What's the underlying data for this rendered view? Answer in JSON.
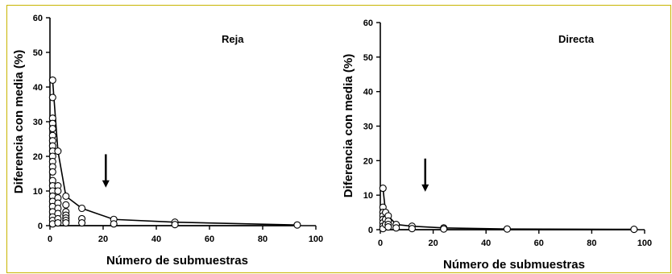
{
  "chart_data": [
    {
      "type": "scatter",
      "title": "Reja",
      "xlabel": "Número de submuestras",
      "ylabel": "Diferencia con media (%)",
      "xlim": [
        0,
        100
      ],
      "ylim": [
        0,
        60
      ],
      "xticks": [
        0,
        20,
        40,
        60,
        80,
        100
      ],
      "yticks": [
        0,
        10,
        20,
        30,
        40,
        50,
        60
      ],
      "arrow_at_x": 21,
      "envelope": [
        [
          1,
          42
        ],
        [
          3,
          21.5
        ],
        [
          6,
          8.5
        ],
        [
          12,
          5
        ],
        [
          24,
          1.8
        ],
        [
          47,
          1
        ],
        [
          93,
          0.2
        ]
      ],
      "baseline": [
        [
          1,
          0
        ],
        [
          93,
          0
        ]
      ],
      "points": [
        [
          1,
          42
        ],
        [
          1,
          37
        ],
        [
          1,
          31
        ],
        [
          1,
          29.5
        ],
        [
          1,
          28
        ],
        [
          1,
          26
        ],
        [
          1,
          24.5
        ],
        [
          1,
          23
        ],
        [
          1,
          21.5
        ],
        [
          1,
          20
        ],
        [
          1,
          18.5
        ],
        [
          1,
          17
        ],
        [
          1,
          15.5
        ],
        [
          1,
          13
        ],
        [
          1,
          11.5
        ],
        [
          1,
          10
        ],
        [
          1,
          8.5
        ],
        [
          1,
          7
        ],
        [
          1,
          5.5
        ],
        [
          1,
          4
        ],
        [
          1,
          2.5
        ],
        [
          1,
          1.5
        ],
        [
          1,
          0.5
        ],
        [
          3,
          21.5
        ],
        [
          3,
          11.5
        ],
        [
          3,
          10
        ],
        [
          3,
          8
        ],
        [
          3,
          6.5
        ],
        [
          3,
          5
        ],
        [
          3,
          3.5
        ],
        [
          3,
          2
        ],
        [
          3,
          0.8
        ],
        [
          6,
          8.5
        ],
        [
          6,
          6
        ],
        [
          6,
          4
        ],
        [
          6,
          3
        ],
        [
          6,
          2.2
        ],
        [
          6,
          1.5
        ],
        [
          6,
          0.8
        ],
        [
          12,
          5
        ],
        [
          12,
          2
        ],
        [
          12,
          0.8
        ],
        [
          24,
          1.8
        ],
        [
          24,
          0.5
        ],
        [
          47,
          1
        ],
        [
          47,
          0.3
        ],
        [
          93,
          0.2
        ]
      ]
    },
    {
      "type": "scatter",
      "title": "Directa",
      "xlabel": "Número de submuestras",
      "ylabel": "Diferencia con media (%)",
      "xlim": [
        0,
        100
      ],
      "ylim": [
        0,
        60
      ],
      "xticks": [
        0,
        20,
        40,
        60,
        80,
        100
      ],
      "yticks": [
        0,
        10,
        20,
        30,
        40,
        50,
        60
      ],
      "arrow_at_x": 17,
      "envelope": [
        [
          1,
          12
        ],
        [
          2,
          5
        ],
        [
          3,
          4
        ],
        [
          6,
          1.5
        ],
        [
          12,
          1
        ],
        [
          24,
          0.5
        ],
        [
          48,
          0.2
        ],
        [
          96,
          0.1
        ]
      ],
      "baseline": [
        [
          1,
          0
        ],
        [
          96,
          0
        ]
      ],
      "points": [
        [
          1,
          12
        ],
        [
          1,
          6.5
        ],
        [
          1,
          5
        ],
        [
          1,
          4
        ],
        [
          1,
          3
        ],
        [
          1,
          2
        ],
        [
          1,
          1
        ],
        [
          1,
          0.3
        ],
        [
          2,
          5
        ],
        [
          2,
          3
        ],
        [
          2,
          1.5
        ],
        [
          3,
          4
        ],
        [
          3,
          2.5
        ],
        [
          3,
          1.5
        ],
        [
          3,
          0.8
        ],
        [
          6,
          1.5
        ],
        [
          6,
          0.5
        ],
        [
          12,
          1
        ],
        [
          12,
          0.3
        ],
        [
          24,
          0.5
        ],
        [
          24,
          0.2
        ],
        [
          48,
          0.2
        ],
        [
          96,
          0.1
        ]
      ]
    }
  ]
}
